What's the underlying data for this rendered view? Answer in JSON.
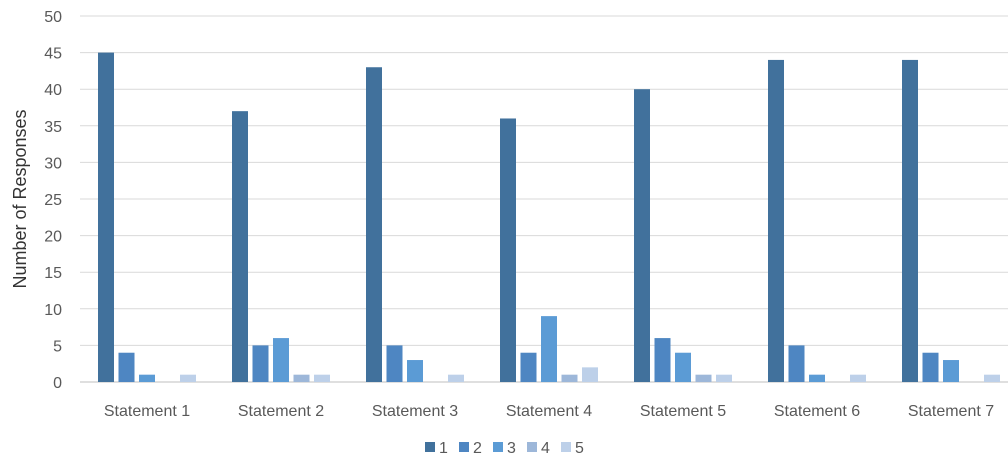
{
  "chart_data": {
    "type": "bar",
    "title": "",
    "xlabel": "",
    "ylabel": "Number of Responses",
    "ylim": [
      0,
      50
    ],
    "yticks": [
      0,
      5,
      10,
      15,
      20,
      25,
      30,
      35,
      40,
      45,
      50
    ],
    "grid": true,
    "legend_position": "bottom",
    "categories": [
      "Statement 1",
      "Statement 2",
      "Statement 3",
      "Statement 4",
      "Statement 5",
      "Statement 6",
      "Statement 7"
    ],
    "series": [
      {
        "name": "1",
        "color": "#41719C",
        "values": [
          45,
          37,
          43,
          36,
          40,
          44,
          44
        ]
      },
      {
        "name": "2",
        "color": "#4E86C2",
        "values": [
          4,
          5,
          5,
          4,
          6,
          5,
          4
        ]
      },
      {
        "name": "3",
        "color": "#5B9BD5",
        "values": [
          1,
          6,
          3,
          9,
          4,
          1,
          3
        ]
      },
      {
        "name": "4",
        "color": "#9DB7D9",
        "values": [
          0,
          1,
          0,
          1,
          1,
          0,
          0
        ]
      },
      {
        "name": "5",
        "color": "#BDD0E9",
        "values": [
          1,
          1,
          1,
          2,
          1,
          1,
          1
        ]
      }
    ]
  }
}
